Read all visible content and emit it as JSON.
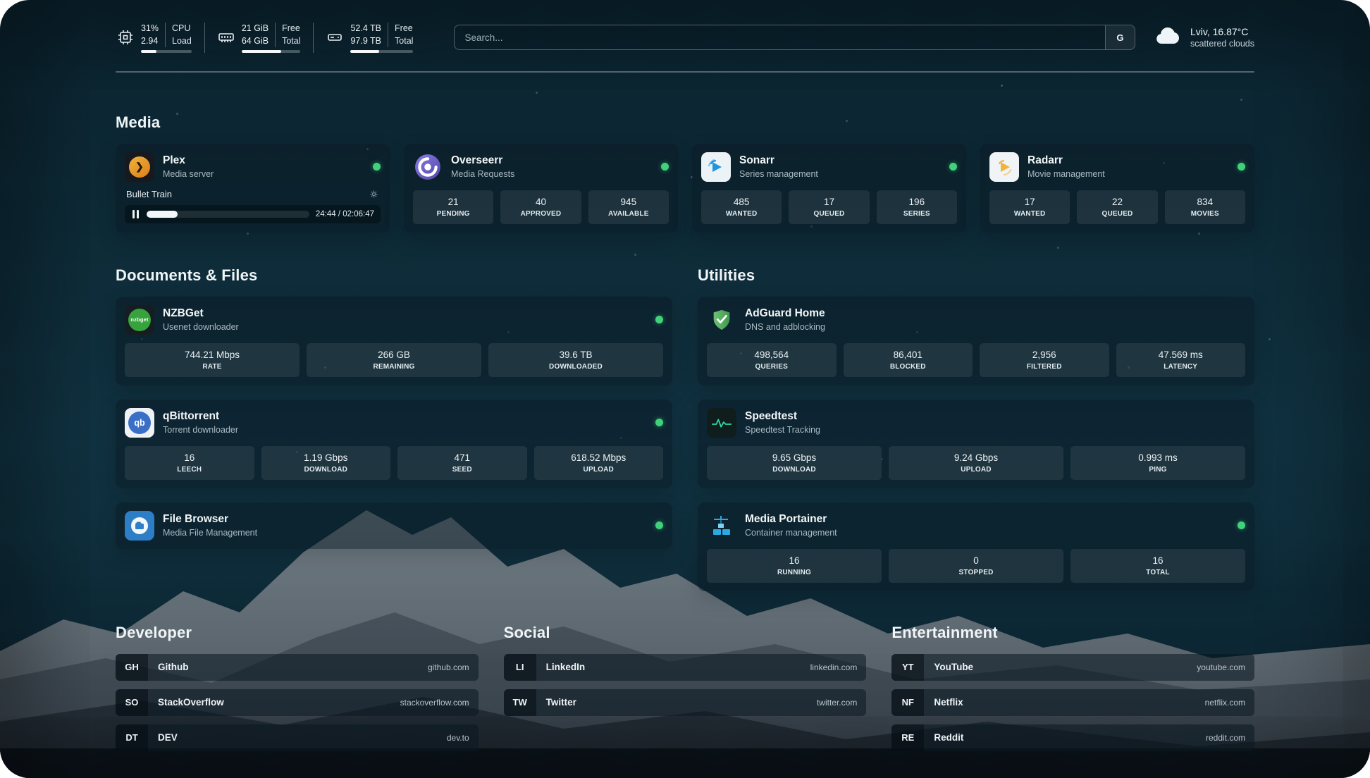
{
  "topbar": {
    "cpu": {
      "value1": "31%",
      "value2": "2.94",
      "label1": "CPU",
      "label2": "Load",
      "bar_percent": 31
    },
    "memory": {
      "value1": "21 GiB",
      "value2": "64 GiB",
      "label1": "Free",
      "label2": "Total",
      "bar_percent": 67
    },
    "disk": {
      "value1": "52.4 TB",
      "value2": "97.9 TB",
      "label1": "Free",
      "label2": "Total",
      "bar_percent": 46
    },
    "search": {
      "placeholder": "Search...",
      "provider": "G"
    },
    "weather": {
      "location": "Lviv, 16.87°C",
      "condition": "scattered clouds"
    }
  },
  "sections": {
    "media": "Media",
    "documents": "Documents & Files",
    "utilities": "Utilities",
    "developer": "Developer",
    "social": "Social",
    "entertainment": "Entertainment"
  },
  "services": {
    "plex": {
      "name": "Plex",
      "subtitle": "Media server",
      "icon_glyph": "❯",
      "now_playing": "Bullet Train",
      "time": "24:44 / 02:06:47",
      "progress_percent": 19
    },
    "overseerr": {
      "name": "Overseerr",
      "subtitle": "Media Requests",
      "stats": [
        {
          "value": "21",
          "label": "PENDING"
        },
        {
          "value": "40",
          "label": "APPROVED"
        },
        {
          "value": "945",
          "label": "AVAILABLE"
        }
      ]
    },
    "sonarr": {
      "name": "Sonarr",
      "subtitle": "Series management",
      "stats": [
        {
          "value": "485",
          "label": "WANTED"
        },
        {
          "value": "17",
          "label": "QUEUED"
        },
        {
          "value": "196",
          "label": "SERIES"
        }
      ]
    },
    "radarr": {
      "name": "Radarr",
      "subtitle": "Movie management",
      "stats": [
        {
          "value": "17",
          "label": "WANTED"
        },
        {
          "value": "22",
          "label": "QUEUED"
        },
        {
          "value": "834",
          "label": "MOVIES"
        }
      ]
    },
    "nzbget": {
      "name": "NZBGet",
      "subtitle": "Usenet downloader",
      "icon_text": "nzbget",
      "stats": [
        {
          "value": "744.21 Mbps",
          "label": "RATE"
        },
        {
          "value": "266 GB",
          "label": "REMAINING"
        },
        {
          "value": "39.6 TB",
          "label": "DOWNLOADED"
        }
      ]
    },
    "qbittorrent": {
      "name": "qBittorrent",
      "subtitle": "Torrent downloader",
      "icon_text": "qb",
      "stats": [
        {
          "value": "16",
          "label": "LEECH"
        },
        {
          "value": "1.19 Gbps",
          "label": "DOWNLOAD"
        },
        {
          "value": "471",
          "label": "SEED"
        },
        {
          "value": "618.52 Mbps",
          "label": "UPLOAD"
        }
      ]
    },
    "filebrowser": {
      "name": "File Browser",
      "subtitle": "Media File Management"
    },
    "adguard": {
      "name": "AdGuard Home",
      "subtitle": "DNS and adblocking",
      "stats": [
        {
          "value": "498,564",
          "label": "QUERIES"
        },
        {
          "value": "86,401",
          "label": "BLOCKED"
        },
        {
          "value": "2,956",
          "label": "FILTERED"
        },
        {
          "value": "47.569 ms",
          "label": "LATENCY"
        }
      ]
    },
    "speedtest": {
      "name": "Speedtest",
      "subtitle": "Speedtest Tracking",
      "stats": [
        {
          "value": "9.65 Gbps",
          "label": "DOWNLOAD"
        },
        {
          "value": "9.24 Gbps",
          "label": "UPLOAD"
        },
        {
          "value": "0.993 ms",
          "label": "PING"
        }
      ]
    },
    "portainer": {
      "name": "Media Portainer",
      "subtitle": "Container management",
      "stats": [
        {
          "value": "16",
          "label": "RUNNING"
        },
        {
          "value": "0",
          "label": "STOPPED"
        },
        {
          "value": "16",
          "label": "TOTAL"
        }
      ]
    }
  },
  "bookmarks": {
    "developer": [
      {
        "abbr": "GH",
        "name": "Github",
        "domain": "github.com"
      },
      {
        "abbr": "SO",
        "name": "StackOverflow",
        "domain": "stackoverflow.com"
      },
      {
        "abbr": "DT",
        "name": "DEV",
        "domain": "dev.to"
      }
    ],
    "social": [
      {
        "abbr": "LI",
        "name": "LinkedIn",
        "domain": "linkedin.com"
      },
      {
        "abbr": "TW",
        "name": "Twitter",
        "domain": "twitter.com"
      }
    ],
    "entertainment": [
      {
        "abbr": "YT",
        "name": "YouTube",
        "domain": "youtube.com"
      },
      {
        "abbr": "NF",
        "name": "Netflix",
        "domain": "netflix.com"
      },
      {
        "abbr": "RE",
        "name": "Reddit",
        "domain": "reddit.com"
      }
    ]
  }
}
